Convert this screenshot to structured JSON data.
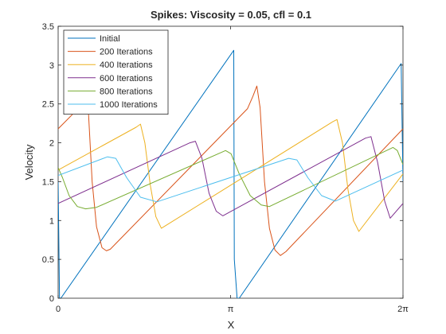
{
  "chart_data": {
    "type": "line",
    "title": "Spikes: Viscosity = 0.05, cfl = 0.1",
    "xlabel": "X",
    "ylabel": "Velocity",
    "xlim": [
      0,
      6.2832
    ],
    "ylim": [
      0,
      3.5
    ],
    "x_ticks": [
      {
        "value": 0,
        "label": "0"
      },
      {
        "value": 3.1416,
        "label": "π"
      },
      {
        "value": 6.2832,
        "label": "2π"
      }
    ],
    "y_ticks": [
      {
        "value": 0,
        "label": "0"
      },
      {
        "value": 0.5,
        "label": "0.5"
      },
      {
        "value": 1,
        "label": "1"
      },
      {
        "value": 1.5,
        "label": "1.5"
      },
      {
        "value": 2,
        "label": "2"
      },
      {
        "value": 2.5,
        "label": "2.5"
      },
      {
        "value": 3,
        "label": "3"
      },
      {
        "value": 3.5,
        "label": "3.5"
      }
    ],
    "grid": false,
    "legend_position": "top-left",
    "series": [
      {
        "name": "Initial",
        "color": "#0072BD",
        "x": [
          0,
          0.025,
          0.05,
          3.2,
          3.21,
          3.26,
          3.3,
          6.25,
          6.2832
        ],
        "y": [
          1.5,
          0,
          0,
          3.19,
          0.5,
          0,
          0,
          3.02,
          1.5
        ]
      },
      {
        "name": "200 Iterations",
        "color": "#D95319",
        "x": [
          0,
          0.45,
          0.5,
          0.55,
          0.62,
          0.7,
          0.8,
          0.88,
          0.95,
          3.45,
          3.55,
          3.62,
          3.68,
          3.76,
          3.85,
          3.95,
          4.05,
          4.15,
          6.2832
        ],
        "y": [
          2.18,
          2.5,
          2.55,
          2.42,
          1.5,
          0.92,
          0.65,
          0.61,
          0.63,
          2.44,
          2.6,
          2.73,
          2.45,
          1.5,
          0.9,
          0.62,
          0.55,
          0.6,
          2.18
        ]
      },
      {
        "name": "400 Iterations",
        "color": "#EDB120",
        "x": [
          0,
          1.42,
          1.5,
          1.58,
          1.68,
          1.78,
          1.88,
          5.0,
          5.08,
          5.18,
          5.28,
          5.38,
          5.48,
          6.2832
        ],
        "y": [
          1.65,
          2.2,
          2.24,
          2.0,
          1.45,
          1.05,
          0.9,
          2.27,
          2.3,
          2.0,
          1.4,
          1.0,
          0.86,
          1.6
        ]
      },
      {
        "name": "600 Iterations",
        "color": "#7E2F8E",
        "x": [
          0,
          2.4,
          2.5,
          2.62,
          2.75,
          2.88,
          3.0,
          5.6,
          5.7,
          5.82,
          5.95,
          6.05,
          6.2832
        ],
        "y": [
          1.22,
          2.0,
          2.02,
          1.8,
          1.35,
          1.12,
          1.06,
          2.06,
          2.08,
          1.75,
          1.25,
          1.03,
          1.22
        ]
      },
      {
        "name": "800 Iterations",
        "color": "#77AC30",
        "x": [
          0,
          0.08,
          0.2,
          0.35,
          0.5,
          0.7,
          3.05,
          3.15,
          3.3,
          3.5,
          3.7,
          3.85,
          6.1,
          6.18,
          6.2832
        ],
        "y": [
          1.68,
          1.55,
          1.32,
          1.18,
          1.15,
          1.17,
          1.9,
          1.86,
          1.6,
          1.32,
          1.2,
          1.18,
          1.94,
          1.9,
          1.72
        ]
      },
      {
        "name": "1000 Iterations",
        "color": "#4DBEEE",
        "x": [
          0,
          0.9,
          1.05,
          1.25,
          1.5,
          1.8,
          4.2,
          4.35,
          4.55,
          4.8,
          5.05,
          6.2832
        ],
        "y": [
          1.58,
          1.82,
          1.8,
          1.55,
          1.3,
          1.24,
          1.8,
          1.78,
          1.55,
          1.32,
          1.25,
          1.65
        ]
      }
    ]
  }
}
